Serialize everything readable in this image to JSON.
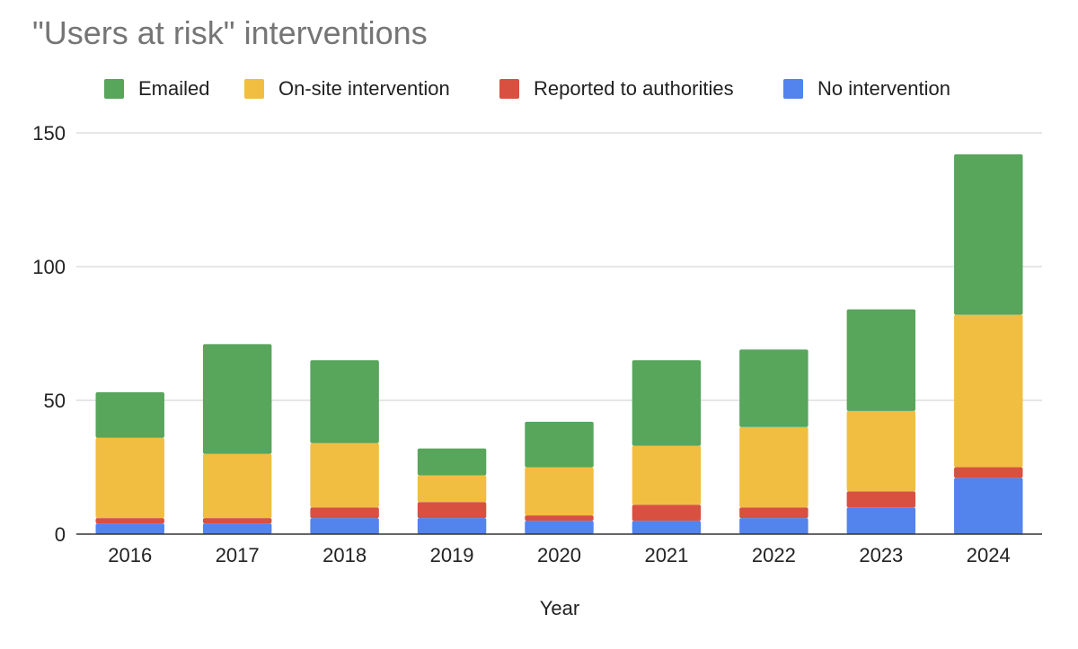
{
  "chart_data": {
    "type": "bar",
    "stacked": true,
    "title": "\"Users at risk\" interventions",
    "xlabel": "Year",
    "ylabel": "",
    "categories": [
      "2016",
      "2017",
      "2018",
      "2019",
      "2020",
      "2021",
      "2022",
      "2023",
      "2024"
    ],
    "ylim": [
      0,
      150
    ],
    "yticks": [
      0,
      50,
      100,
      150
    ],
    "grid": true,
    "legend_position": "top",
    "series": [
      {
        "name": "No intervention",
        "color": "#5383EC",
        "values": [
          4,
          4,
          6,
          6,
          5,
          5,
          6,
          10,
          21
        ]
      },
      {
        "name": "Reported to authorities",
        "color": "#D85140",
        "values": [
          2,
          2,
          4,
          6,
          2,
          6,
          4,
          6,
          4
        ]
      },
      {
        "name": "On-site intervention",
        "color": "#F1BE42",
        "values": [
          30,
          24,
          24,
          10,
          18,
          22,
          30,
          30,
          57
        ]
      },
      {
        "name": "Emailed",
        "color": "#58A55C",
        "values": [
          17,
          41,
          31,
          10,
          17,
          32,
          29,
          38,
          60
        ]
      }
    ],
    "legend_order": [
      "Emailed",
      "On-site intervention",
      "Reported to authorities",
      "No intervention"
    ]
  }
}
